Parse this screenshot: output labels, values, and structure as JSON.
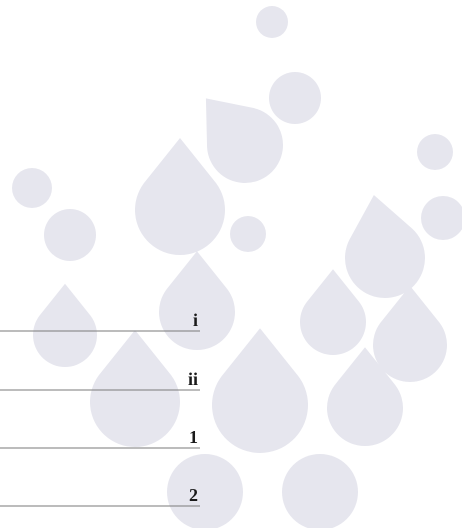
{
  "toc": {
    "entries": [
      {
        "page": "i"
      },
      {
        "page": "ii"
      },
      {
        "page": "1"
      },
      {
        "page": "2"
      }
    ]
  }
}
